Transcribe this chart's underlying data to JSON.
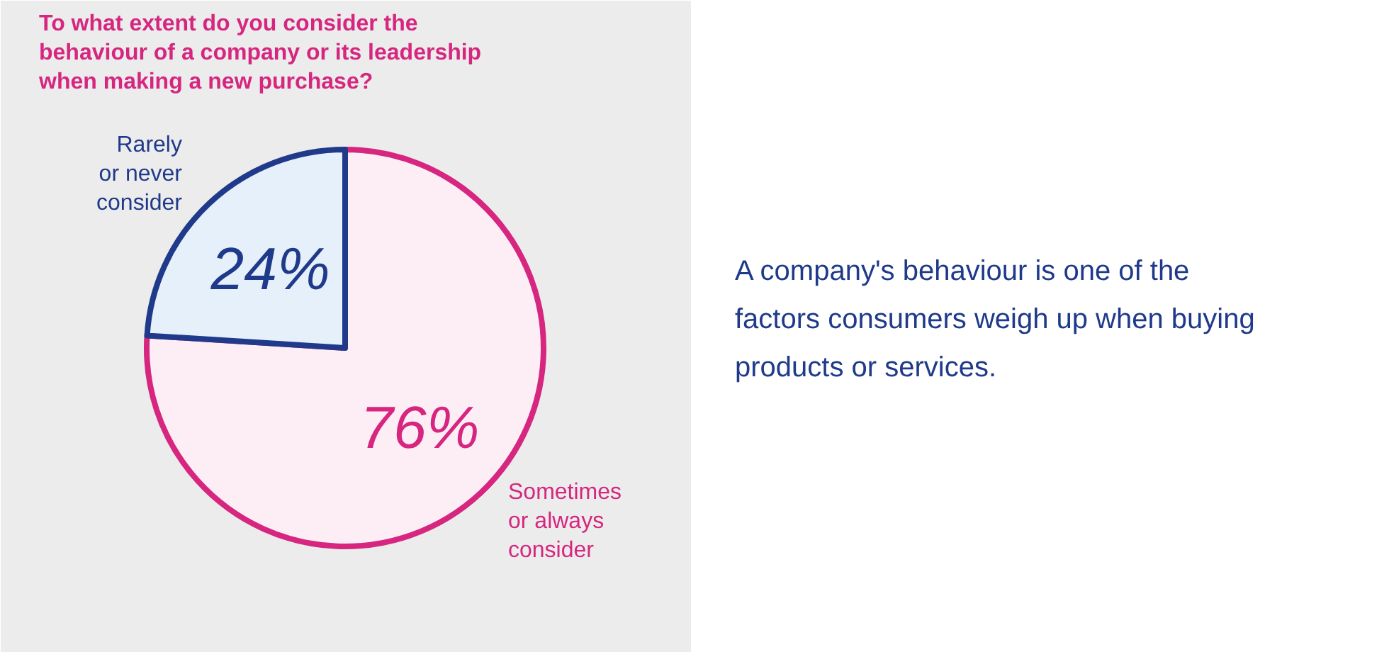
{
  "chart_data": {
    "type": "pie",
    "title": "To what extent do you consider the behaviour of a company or its leadership when making a new purchase?",
    "categories": [
      "Sometimes or always consider",
      "Rarely or never consider"
    ],
    "values": [
      76,
      24
    ],
    "value_labels": [
      "76%",
      "24%"
    ],
    "colors": [
      "#fdeef5",
      "#e6f0fa"
    ],
    "annotations": [
      "A company's behaviour is one of the factors consumers weigh up when buying products or services."
    ]
  }
}
